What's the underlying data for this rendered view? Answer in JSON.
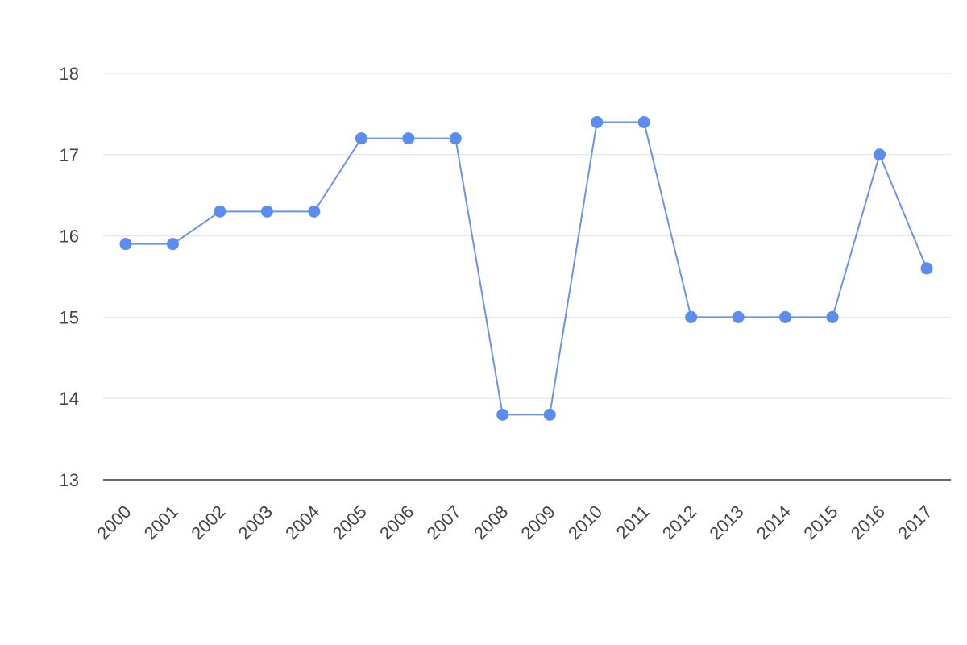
{
  "chart_data": {
    "type": "line",
    "title": "",
    "xlabel": "",
    "ylabel": "",
    "categories": [
      "2000",
      "2001",
      "2002",
      "2003",
      "2004",
      "2005",
      "2006",
      "2007",
      "2008",
      "2009",
      "2010",
      "2011",
      "2012",
      "2013",
      "2014",
      "2015",
      "2016",
      "2017"
    ],
    "series": [
      {
        "values": [
          15.9,
          15.9,
          16.3,
          16.3,
          16.3,
          17.2,
          17.2,
          17.2,
          13.8,
          13.8,
          17.4,
          17.4,
          15.0,
          15.0,
          15.0,
          15.0,
          17.0,
          15.6
        ]
      }
    ],
    "ylim": [
      13,
      18
    ],
    "yticks": [
      13,
      14,
      15,
      16,
      17,
      18
    ],
    "grid": true,
    "legend": "none",
    "colors": {
      "series": "#6b93e8",
      "marker": "#5b8def"
    }
  }
}
